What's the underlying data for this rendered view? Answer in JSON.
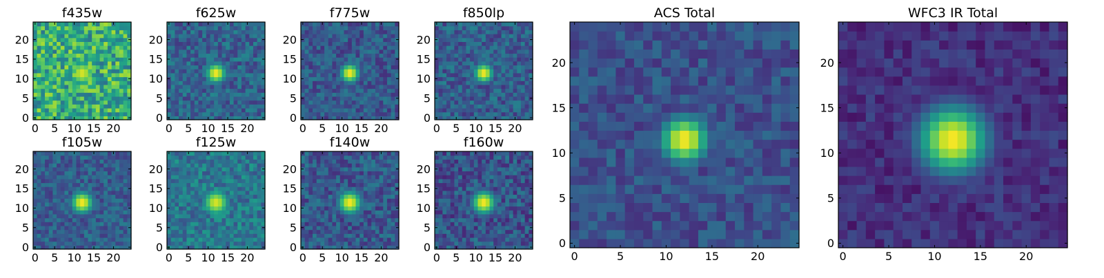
{
  "colormap": {
    "name": "viridis",
    "stops": [
      "#440154",
      "#482878",
      "#3e4989",
      "#31688e",
      "#26828e",
      "#1f9e89",
      "#35b779",
      "#6ece58",
      "#b5de2b",
      "#fde725"
    ]
  },
  "chart_data": [
    {
      "type": "heatmap",
      "title": "f435w",
      "grid_size": 25,
      "xticks": [
        "0",
        "5",
        "10",
        "15",
        "20"
      ],
      "yticks": [
        "0",
        "5",
        "10",
        "15",
        "20"
      ],
      "xlim": [
        -0.5,
        24.5
      ],
      "ylim": [
        -0.5,
        24.5
      ],
      "source_center": [
        12,
        11.5
      ],
      "source_width": 2.6,
      "source_peak": 0.95,
      "background_level": 0.62,
      "noise_level": 0.5
    },
    {
      "type": "heatmap",
      "title": "f625w",
      "grid_size": 25,
      "xticks": [
        "0",
        "5",
        "10",
        "15",
        "20"
      ],
      "yticks": [
        "0",
        "5",
        "10",
        "15",
        "20"
      ],
      "xlim": [
        -0.5,
        24.5
      ],
      "ylim": [
        -0.5,
        24.5
      ],
      "source_center": [
        12,
        11.5
      ],
      "source_width": 2.0,
      "source_peak": 1.0,
      "background_level": 0.32,
      "noise_level": 0.3
    },
    {
      "type": "heatmap",
      "title": "f775w",
      "grid_size": 25,
      "xticks": [
        "0",
        "5",
        "10",
        "15",
        "20"
      ],
      "yticks": [
        "0",
        "5",
        "10",
        "15",
        "20"
      ],
      "xlim": [
        -0.5,
        24.5
      ],
      "ylim": [
        -0.5,
        24.5
      ],
      "source_center": [
        12,
        11.5
      ],
      "source_width": 1.9,
      "source_peak": 1.0,
      "background_level": 0.28,
      "noise_level": 0.28
    },
    {
      "type": "heatmap",
      "title": "f850lp",
      "grid_size": 25,
      "xticks": [
        "0",
        "5",
        "10",
        "15",
        "20"
      ],
      "yticks": [
        "0",
        "5",
        "10",
        "15",
        "20"
      ],
      "xlim": [
        -0.5,
        24.5
      ],
      "ylim": [
        -0.5,
        24.5
      ],
      "source_center": [
        12,
        11.5
      ],
      "source_width": 1.9,
      "source_peak": 1.0,
      "background_level": 0.3,
      "noise_level": 0.3
    },
    {
      "type": "heatmap",
      "title": "ACS Total",
      "grid_size": 25,
      "xticks": [
        "0",
        "5",
        "10",
        "15",
        "20"
      ],
      "yticks": [
        "0",
        "5",
        "10",
        "15",
        "20"
      ],
      "xlim": [
        -0.5,
        24.5
      ],
      "ylim": [
        -0.5,
        24.5
      ],
      "source_center": [
        12,
        11.5
      ],
      "source_width": 2.0,
      "source_peak": 1.0,
      "background_level": 0.25,
      "noise_level": 0.22
    },
    {
      "type": "heatmap",
      "title": "WFC3 IR Total",
      "grid_size": 25,
      "xticks": [
        "0",
        "5",
        "10",
        "15",
        "20"
      ],
      "yticks": [
        "0",
        "5",
        "10",
        "15",
        "20"
      ],
      "xlim": [
        -0.5,
        24.5
      ],
      "ylim": [
        -0.5,
        24.5
      ],
      "source_center": [
        12,
        11.5
      ],
      "source_width": 2.8,
      "source_peak": 1.0,
      "background_level": 0.14,
      "noise_level": 0.18
    },
    {
      "type": "heatmap",
      "title": "f105w",
      "grid_size": 25,
      "xticks": [
        "0",
        "5",
        "10",
        "15",
        "20"
      ],
      "yticks": [
        "0",
        "5",
        "10",
        "15",
        "20"
      ],
      "xlim": [
        -0.5,
        24.5
      ],
      "ylim": [
        -0.5,
        24.5
      ],
      "source_center": [
        12,
        11.5
      ],
      "source_width": 2.2,
      "source_peak": 1.0,
      "background_level": 0.3,
      "noise_level": 0.26
    },
    {
      "type": "heatmap",
      "title": "f125w",
      "grid_size": 25,
      "xticks": [
        "0",
        "5",
        "10",
        "15",
        "20"
      ],
      "yticks": [
        "0",
        "5",
        "10",
        "15",
        "20"
      ],
      "xlim": [
        -0.5,
        24.5
      ],
      "ylim": [
        -0.5,
        24.5
      ],
      "source_center": [
        12,
        11.5
      ],
      "source_width": 2.6,
      "source_peak": 0.95,
      "background_level": 0.4,
      "noise_level": 0.3
    },
    {
      "type": "heatmap",
      "title": "f140w",
      "grid_size": 25,
      "xticks": [
        "0",
        "5",
        "10",
        "15",
        "20"
      ],
      "yticks": [
        "0",
        "5",
        "10",
        "15",
        "20"
      ],
      "xlim": [
        -0.5,
        24.5
      ],
      "ylim": [
        -0.5,
        24.5
      ],
      "source_center": [
        12,
        11.5
      ],
      "source_width": 2.3,
      "source_peak": 1.0,
      "background_level": 0.28,
      "noise_level": 0.3
    },
    {
      "type": "heatmap",
      "title": "f160w",
      "grid_size": 25,
      "xticks": [
        "0",
        "5",
        "10",
        "15",
        "20"
      ],
      "yticks": [
        "0",
        "5",
        "10",
        "15",
        "20"
      ],
      "xlim": [
        -0.5,
        24.5
      ],
      "ylim": [
        -0.5,
        24.5
      ],
      "source_center": [
        12,
        11.5
      ],
      "source_width": 2.3,
      "source_peak": 1.0,
      "background_level": 0.26,
      "noise_level": 0.32
    }
  ]
}
